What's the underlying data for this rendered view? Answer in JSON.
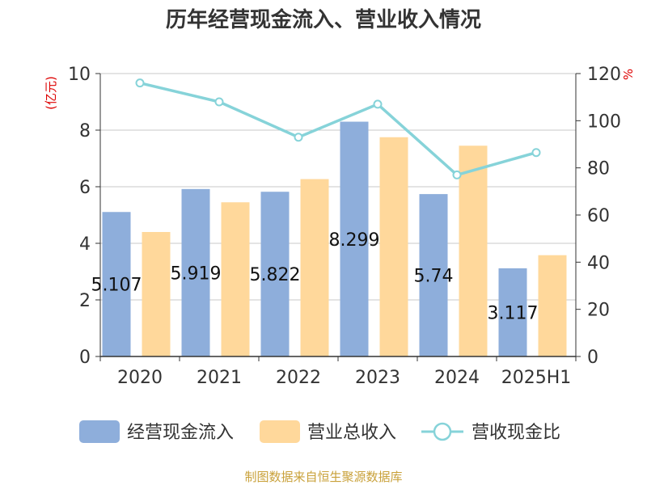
{
  "chart_data": {
    "type": "bar",
    "title": "历年经营现金流入、营业收入情况",
    "categories": [
      "2020",
      "2021",
      "2022",
      "2023",
      "2024",
      "2025H1"
    ],
    "series": [
      {
        "name": "经营现金流入",
        "type": "bar",
        "axis": "left",
        "color": "#8eaedb",
        "values": [
          5.107,
          5.919,
          5.822,
          8.299,
          5.74,
          3.117
        ],
        "labels": [
          "5.107",
          "5.919",
          "5.822",
          "8.299",
          "5.74",
          "3.117"
        ]
      },
      {
        "name": "营业总收入",
        "type": "bar",
        "axis": "left",
        "color": "#ffd89b",
        "values": [
          4.4,
          5.45,
          6.27,
          7.75,
          7.45,
          3.58
        ]
      },
      {
        "name": "营收现金比",
        "type": "line",
        "axis": "right",
        "color": "#86d3d9",
        "values": [
          116,
          108,
          93,
          107,
          77,
          86.5
        ]
      }
    ],
    "yleft": {
      "unit": "(亿元)",
      "ylim": [
        0,
        10
      ],
      "ticks": [
        "0",
        "2",
        "4",
        "6",
        "8",
        "10"
      ]
    },
    "yright": {
      "unit": "%",
      "ylim": [
        0,
        120
      ],
      "ticks": [
        "0",
        "20",
        "40",
        "60",
        "80",
        "100",
        "120"
      ]
    },
    "grid": true,
    "legend": "bottom",
    "source": "制图数据来自恒生聚源数据库"
  }
}
